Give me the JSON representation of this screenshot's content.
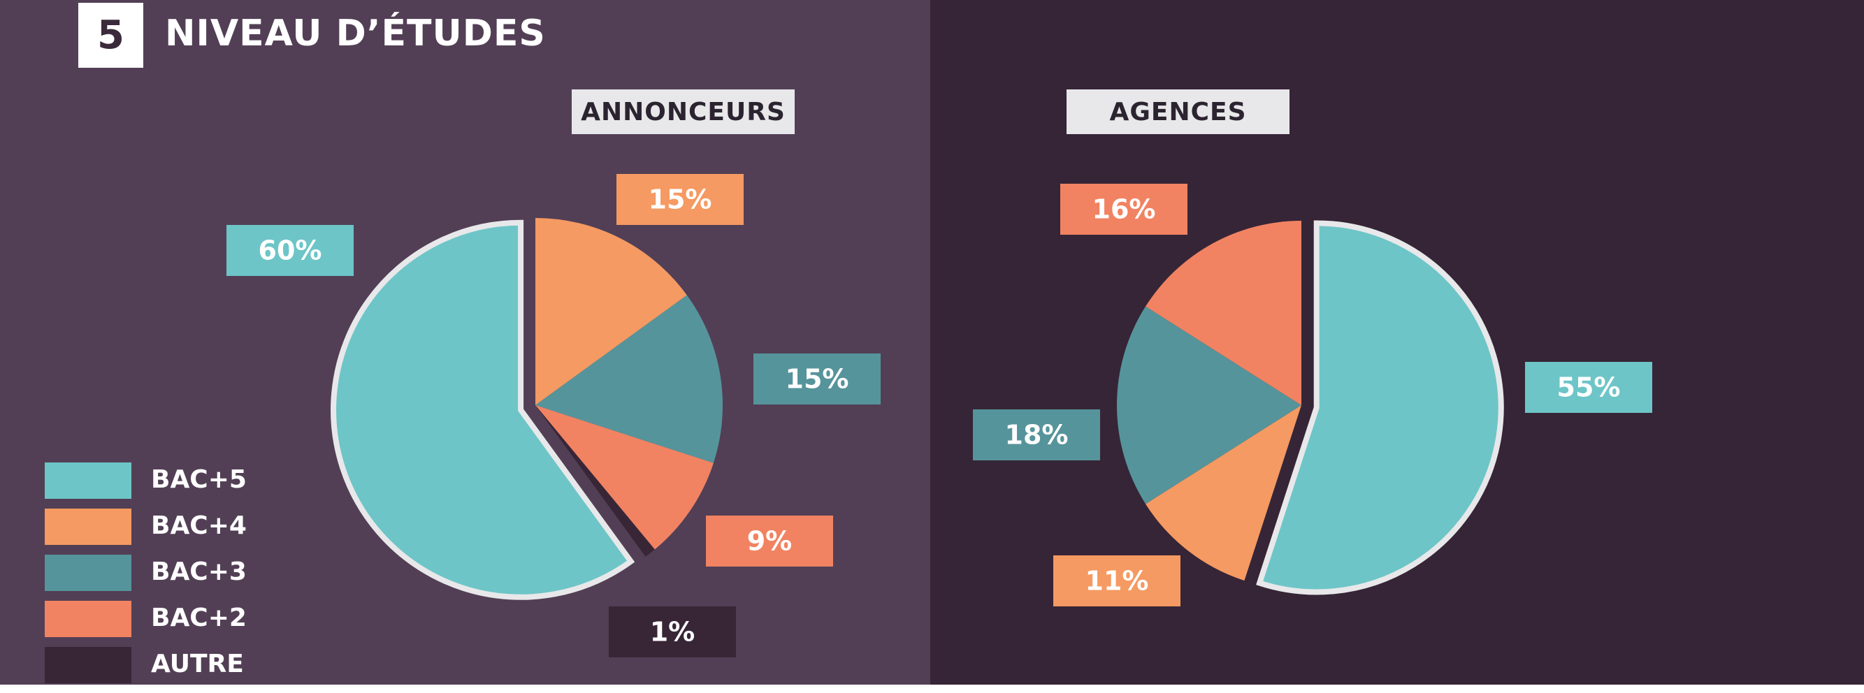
{
  "section": {
    "number": "5",
    "title": "NIVEAU D’ÉTUDES"
  },
  "colors": {
    "bac5": "#6dc5c7",
    "bac4": "#f59a62",
    "bac3": "#56949b",
    "bac2": "#f18362",
    "autre": "#382637",
    "outline": "#e8e8ea",
    "panel_left": "#523f55",
    "panel_right": "#362536"
  },
  "legend": [
    {
      "key": "bac5",
      "label": "BAC+5"
    },
    {
      "key": "bac4",
      "label": "BAC+4"
    },
    {
      "key": "bac3",
      "label": "BAC+3"
    },
    {
      "key": "bac2",
      "label": "BAC+2"
    },
    {
      "key": "autre",
      "label": "AUTRE"
    }
  ],
  "chart_data": [
    {
      "type": "pie",
      "title": "ANNONCEURS",
      "categories": [
        "BAC+5",
        "BAC+4",
        "BAC+3",
        "BAC+2",
        "AUTRE"
      ],
      "values": [
        60,
        15,
        15,
        9,
        1
      ],
      "labels": [
        "60%",
        "15%",
        "15%",
        "9%",
        "1%"
      ],
      "exploded": "BAC+5"
    },
    {
      "type": "pie",
      "title": "AGENCES",
      "categories": [
        "BAC+5",
        "BAC+4",
        "BAC+3",
        "BAC+2"
      ],
      "values": [
        55,
        11,
        18,
        16
      ],
      "labels": [
        "55%",
        "11%",
        "18%",
        "16%"
      ],
      "exploded": "BAC+5"
    }
  ]
}
